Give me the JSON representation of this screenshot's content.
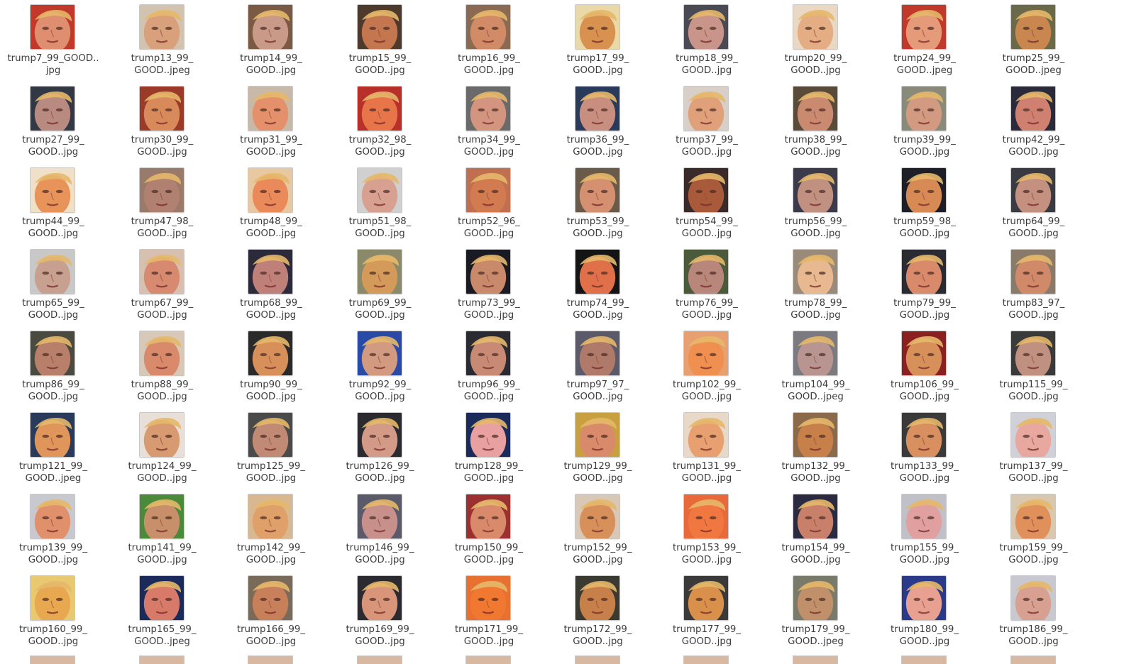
{
  "view": "icon-grid",
  "thumbnail_icon": "face-photo-thumbnail",
  "files": [
    {
      "line1": "trump7_99_GOOD..",
      "line2": "jpg",
      "skin": "#e08e70",
      "bg": "#c0392b"
    },
    {
      "line1": "trump13_99_",
      "line2": "GOOD..jpeg",
      "skin": "#d9a07c",
      "bg": "#d2c2b0"
    },
    {
      "line1": "trump14_99_",
      "line2": "GOOD..jpg",
      "skin": "#c99a88",
      "bg": "#7a5a44"
    },
    {
      "line1": "trump15_99_",
      "line2": "GOOD..jpg",
      "skin": "#c4774f",
      "bg": "#4e3a2c"
    },
    {
      "line1": "trump16_99_",
      "line2": "GOOD..jpg",
      "skin": "#d28b67",
      "bg": "#8a6a52"
    },
    {
      "line1": "trump17_99_",
      "line2": "GOOD..jpg",
      "skin": "#d9914f",
      "bg": "#e9d9a8"
    },
    {
      "line1": "trump18_99_",
      "line2": "GOOD..jpg",
      "skin": "#c9958a",
      "bg": "#4a4a55"
    },
    {
      "line1": "trump20_99_",
      "line2": "GOOD..jpg",
      "skin": "#e4ad84",
      "bg": "#e8d8c4"
    },
    {
      "line1": "trump24_99_",
      "line2": "GOOD..jpeg",
      "skin": "#e59a7a",
      "bg": "#c0392b"
    },
    {
      "line1": "trump25_99_",
      "line2": "GOOD..jpeg",
      "skin": "#c9864f",
      "bg": "#6a6a4a"
    },
    {
      "line1": "trump27_99_",
      "line2": "GOOD..jpg",
      "skin": "#b98a80",
      "bg": "#333845"
    },
    {
      "line1": "trump30_99_",
      "line2": "GOOD..jpg",
      "skin": "#d98a5a",
      "bg": "#9c3a2a"
    },
    {
      "line1": "trump31_99_",
      "line2": "GOOD..jpg",
      "skin": "#e4906a",
      "bg": "#c8b8a8"
    },
    {
      "line1": "trump32_98_",
      "line2": "GOOD..jpg",
      "skin": "#e8744a",
      "bg": "#b8302a"
    },
    {
      "line1": "trump34_99_",
      "line2": "GOOD..jpg",
      "skin": "#d49580",
      "bg": "#6a6a6a"
    },
    {
      "line1": "trump36_99_",
      "line2": "GOOD..jpg",
      "skin": "#c88f80",
      "bg": "#2a3a5a"
    },
    {
      "line1": "trump37_99_",
      "line2": "GOOD..jpg",
      "skin": "#e0a07a",
      "bg": "#d8d0c8"
    },
    {
      "line1": "trump38_99_",
      "line2": "GOOD..jpg",
      "skin": "#c98a70",
      "bg": "#5a4a3a"
    },
    {
      "line1": "trump39_99_",
      "line2": "GOOD..jpg",
      "skin": "#d29a80",
      "bg": "#8a8a7a"
    },
    {
      "line1": "trump42_99_",
      "line2": "GOOD..jpg",
      "skin": "#d08070",
      "bg": "#2a2a3a"
    },
    {
      "line1": "trump44_99_",
      "line2": "GOOD..jpg",
      "skin": "#e8935a",
      "bg": "#f0e0c8"
    },
    {
      "line1": "trump47_98_",
      "line2": "GOOD..jpg",
      "skin": "#b08070",
      "bg": "#9a7a6a"
    },
    {
      "line1": "trump48_99_",
      "line2": "GOOD..jpg",
      "skin": "#ea8a5a",
      "bg": "#e8c8a0"
    },
    {
      "line1": "trump51_98_",
      "line2": "GOOD..jpg",
      "skin": "#d8a090",
      "bg": "#d0d0d0"
    },
    {
      "line1": "trump52_96_",
      "line2": "GOOD..jpg",
      "skin": "#d27a50",
      "bg": "#c07050"
    },
    {
      "line1": "trump53_99_",
      "line2": "GOOD..jpg",
      "skin": "#d49070",
      "bg": "#6a5a4a"
    },
    {
      "line1": "trump54_99_",
      "line2": "GOOD..jpg",
      "skin": "#a85a3a",
      "bg": "#3a2a2a"
    },
    {
      "line1": "trump56_99_",
      "line2": "GOOD..jpg",
      "skin": "#c09080",
      "bg": "#3a3a4a"
    },
    {
      "line1": "trump59_98_",
      "line2": "GOOD..jpg",
      "skin": "#d88a55",
      "bg": "#1e1e28"
    },
    {
      "line1": "trump64_99_",
      "line2": "GOOD..jpg",
      "skin": "#c49080",
      "bg": "#3a3a42"
    },
    {
      "line1": "trump65_99_",
      "line2": "GOOD..jpg",
      "skin": "#c8a090",
      "bg": "#c8c8c8"
    },
    {
      "line1": "trump67_99_",
      "line2": "GOOD..jpg",
      "skin": "#d88a70",
      "bg": "#d8c0b0"
    },
    {
      "line1": "trump68_99_",
      "line2": "GOOD..jpg",
      "skin": "#c0807a",
      "bg": "#2a2a3a"
    },
    {
      "line1": "trump69_99_",
      "line2": "GOOD..jpg",
      "skin": "#d49a5a",
      "bg": "#8a8a6a"
    },
    {
      "line1": "trump73_99_",
      "line2": "GOOD..jpg",
      "skin": "#c88a6a",
      "bg": "#1a1a22"
    },
    {
      "line1": "trump74_99_",
      "line2": "GOOD..jpg",
      "skin": "#e0704a",
      "bg": "#141414"
    },
    {
      "line1": "trump76_99_",
      "line2": "GOOD..jpg",
      "skin": "#b8867a",
      "bg": "#4a5a3a"
    },
    {
      "line1": "trump78_99_",
      "line2": "GOOD..jpg",
      "skin": "#e8b890",
      "bg": "#9a8a7a"
    },
    {
      "line1": "trump79_99_",
      "line2": "GOOD..jpg",
      "skin": "#d88a6a",
      "bg": "#2a2a32"
    },
    {
      "line1": "trump83_97_",
      "line2": "GOOD..jpg",
      "skin": "#d08a6a",
      "bg": "#8a7a6a"
    },
    {
      "line1": "trump86_99_",
      "line2": "GOOD..jpg",
      "skin": "#b8806a",
      "bg": "#4a4a40"
    },
    {
      "line1": "trump88_99_",
      "line2": "GOOD..jpg",
      "skin": "#d88a6a",
      "bg": "#d8c8b8"
    },
    {
      "line1": "trump90_99_",
      "line2": "GOOD..jpg",
      "skin": "#d8905a",
      "bg": "#2a2a2a"
    },
    {
      "line1": "trump92_99_",
      "line2": "GOOD..jpg",
      "skin": "#d29a80",
      "bg": "#2a4aa8"
    },
    {
      "line1": "trump96_99_",
      "line2": "GOOD..jpg",
      "skin": "#c88a75",
      "bg": "#2a2a32"
    },
    {
      "line1": "trump97_97_",
      "line2": "GOOD..jpg",
      "skin": "#b07a6a",
      "bg": "#5a5a6a"
    },
    {
      "line1": "trump102_99_",
      "line2": "GOOD..jpg",
      "skin": "#f09050",
      "bg": "#e8a070"
    },
    {
      "line1": "trump104_99_",
      "line2": "GOOD..jpeg",
      "skin": "#b89590",
      "bg": "#7a7a80"
    },
    {
      "line1": "trump106_99_",
      "line2": "GOOD..jpg",
      "skin": "#d8905a",
      "bg": "#8a2020"
    },
    {
      "line1": "trump115_99_",
      "line2": "GOOD..jpg",
      "skin": "#c09080",
      "bg": "#3a3a3a"
    },
    {
      "line1": "trump121_99_",
      "line2": "GOOD..jpeg",
      "skin": "#e0955a",
      "bg": "#2a3a5a"
    },
    {
      "line1": "trump124_99_",
      "line2": "GOOD..jpg",
      "skin": "#d89a70",
      "bg": "#e8e0d8"
    },
    {
      "line1": "trump125_99_",
      "line2": "GOOD..jpg",
      "skin": "#c08a75",
      "bg": "#4a4a4a"
    },
    {
      "line1": "trump126_99_",
      "line2": "GOOD..jpg",
      "skin": "#d49a88",
      "bg": "#2a2a30"
    },
    {
      "line1": "trump128_99_",
      "line2": "GOOD..jpg",
      "skin": "#e8a0a0",
      "bg": "#1a2a5a"
    },
    {
      "line1": "trump129_99_",
      "line2": "GOOD..jpg",
      "skin": "#d88a6a",
      "bg": "#c8a040"
    },
    {
      "line1": "trump131_99_",
      "line2": "GOOD..jpg",
      "skin": "#e8a070",
      "bg": "#e8d8c8"
    },
    {
      "line1": "trump132_99_",
      "line2": "GOOD..jpg",
      "skin": "#c8804a",
      "bg": "#8a6a4a"
    },
    {
      "line1": "trump133_99_",
      "line2": "GOOD..jpg",
      "skin": "#d89060",
      "bg": "#3a3a3a"
    },
    {
      "line1": "trump137_99_",
      "line2": "GOOD..jpg",
      "skin": "#e8a8a0",
      "bg": "#d0d0d8"
    },
    {
      "line1": "trump139_99_",
      "line2": "GOOD..jpg",
      "skin": "#e0906a",
      "bg": "#c8c8d0"
    },
    {
      "line1": "trump141_99_",
      "line2": "GOOD..jpg",
      "skin": "#c8906a",
      "bg": "#4a8a3a"
    },
    {
      "line1": "trump142_99_",
      "line2": "GOOD..jpg",
      "skin": "#e0a06a",
      "bg": "#d8b890"
    },
    {
      "line1": "trump146_99_",
      "line2": "GOOD..jpg",
      "skin": "#c8908a",
      "bg": "#5a5a6a"
    },
    {
      "line1": "trump150_99_",
      "line2": "GOOD..jpg",
      "skin": "#d88a6a",
      "bg": "#9a3030"
    },
    {
      "line1": "trump152_99_",
      "line2": "GOOD..jpg",
      "skin": "#d8905a",
      "bg": "#d8c8b8"
    },
    {
      "line1": "trump153_99_",
      "line2": "GOOD..jpg",
      "skin": "#f07840",
      "bg": "#e86a3a"
    },
    {
      "line1": "trump154_99_",
      "line2": "GOOD..jpg",
      "skin": "#c8806a",
      "bg": "#2a2a40"
    },
    {
      "line1": "trump155_99_",
      "line2": "GOOD..jpg",
      "skin": "#e0a0a0",
      "bg": "#c0c0c8"
    },
    {
      "line1": "trump159_99_",
      "line2": "GOOD..jpg",
      "skin": "#e0905a",
      "bg": "#d8c8b0"
    },
    {
      "line1": "trump160_99_",
      "line2": "GOOD..jpg",
      "skin": "#e8a850",
      "bg": "#e8c870"
    },
    {
      "line1": "trump165_99_",
      "line2": "GOOD..jpeg",
      "skin": "#d87a6a",
      "bg": "#1a2a5a"
    },
    {
      "line1": "trump166_99_",
      "line2": "GOOD..jpg",
      "skin": "#c8805a",
      "bg": "#7a6a5a"
    },
    {
      "line1": "trump169_99_",
      "line2": "GOOD..jpg",
      "skin": "#d8957a",
      "bg": "#2a2a30"
    },
    {
      "line1": "trump171_99_",
      "line2": "GOOD..jpg",
      "skin": "#f07830",
      "bg": "#e87030"
    },
    {
      "line1": "trump172_99_",
      "line2": "GOOD..jpg",
      "skin": "#c8804a",
      "bg": "#3a3a32"
    },
    {
      "line1": "trump177_99_",
      "line2": "GOOD..jpg",
      "skin": "#d8904a",
      "bg": "#3a3a3a"
    },
    {
      "line1": "trump179_99_",
      "line2": "GOOD..jpeg",
      "skin": "#c0906a",
      "bg": "#7a7a6a"
    },
    {
      "line1": "trump180_99_",
      "line2": "GOOD..jpg",
      "skin": "#e8a090",
      "bg": "#2a3a8a"
    },
    {
      "line1": "trump186_99_",
      "line2": "GOOD..jpg",
      "skin": "#d8a090",
      "bg": "#c8c8d0"
    }
  ]
}
